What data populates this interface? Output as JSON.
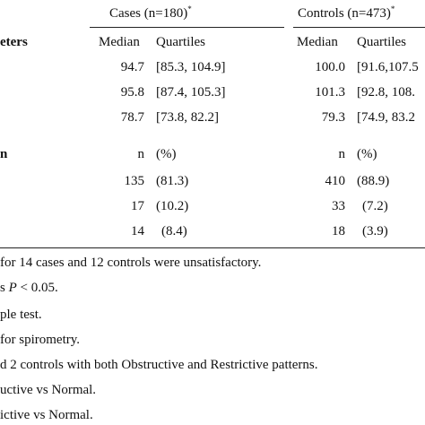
{
  "header": {
    "cases": "Cases (n=180)",
    "cases_mark": "*",
    "controls": "Controls (n=473)",
    "controls_mark": "*"
  },
  "section1": {
    "label": "eters",
    "col_median": "Median",
    "col_quartiles": "Quartiles",
    "col_median2": "Median",
    "col_quartiles2": "Quartiles",
    "rows": [
      {
        "case_median": "94.7",
        "case_q": "[85.3, 104.9]",
        "ctrl_median": "100.0",
        "ctrl_q": "[91.6,107.5"
      },
      {
        "case_median": "95.8",
        "case_q": "[87.4, 105.3]",
        "ctrl_median": "101.3",
        "ctrl_q": "[92.8, 108."
      },
      {
        "case_median": "78.7",
        "case_q": "[73.8, 82.2]",
        "ctrl_median": "79.3",
        "ctrl_q": "[74.9, 83.2"
      }
    ]
  },
  "section2": {
    "label": "n",
    "col_n": "n",
    "col_pct": "(%)",
    "col_n2": "n",
    "col_pct2": "(%)",
    "rows": [
      {
        "case_n": "135",
        "case_pct": "(81.3)",
        "ctrl_n": "410",
        "ctrl_pct": "(88.9)"
      },
      {
        "case_n": "17",
        "case_pct": "(10.2)",
        "ctrl_n": "33",
        "ctrl_pct": "(7.2)"
      },
      {
        "case_n": "14",
        "case_pct": "(8.4)",
        "ctrl_n": "18",
        "ctrl_pct": "(3.9)"
      }
    ]
  },
  "notes": [
    {
      "text": "for 14 cases and 12 controls were unsatisfactory."
    },
    {
      "pre": "s ",
      "italic": "P",
      "post": " < 0.05."
    },
    {
      "text": "ple test."
    },
    {
      "text": "for spirometry."
    },
    {
      "text": "d 2 controls with both Obstructive and Restrictive patterns."
    },
    {
      "text": "uctive vs Normal."
    },
    {
      "text": "ictive vs Normal."
    }
  ]
}
